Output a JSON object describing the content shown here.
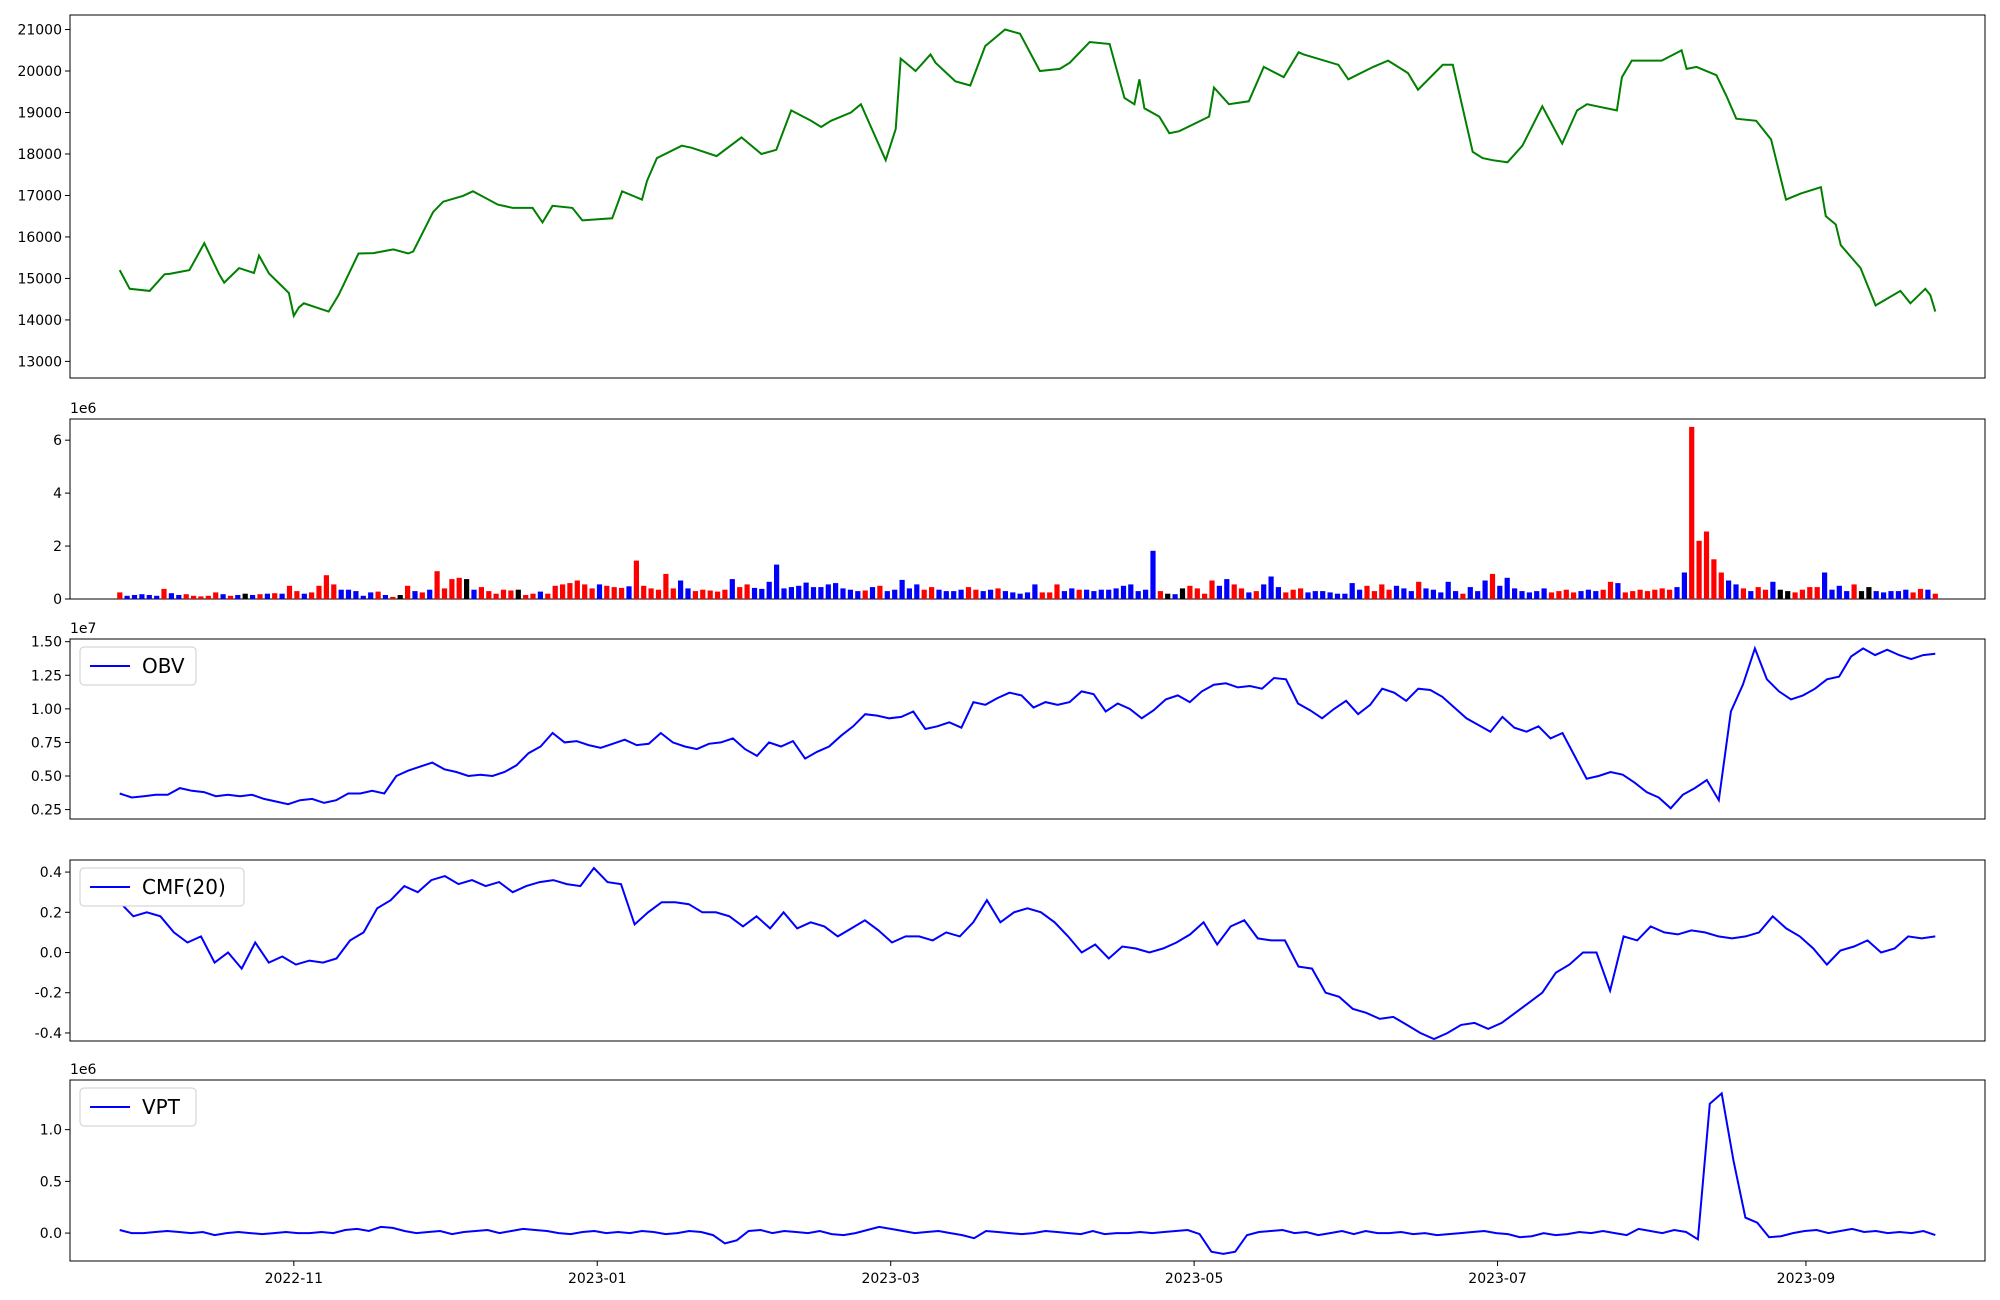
{
  "chart_data": [
    {
      "type": "line",
      "panel": "price",
      "color": "#008000",
      "ylim": [
        12600,
        21350
      ],
      "yticks": [
        13000,
        14000,
        15000,
        16000,
        17000,
        18000,
        19000,
        20000,
        21000
      ],
      "x": [
        "2022-09-27",
        "2022-09-29",
        "2022-10-03",
        "2022-10-06",
        "2022-10-07",
        "2022-10-11",
        "2022-10-14",
        "2022-10-17",
        "2022-10-18",
        "2022-10-21",
        "2022-10-24",
        "2022-10-25",
        "2022-10-27",
        "2022-10-31",
        "2022-11-01",
        "2022-11-02",
        "2022-11-03",
        "2022-11-08",
        "2022-11-10",
        "2022-11-14",
        "2022-11-17",
        "2022-11-21",
        "2022-11-24",
        "2022-11-25",
        "2022-11-29",
        "2022-12-01",
        "2022-12-05",
        "2022-12-07",
        "2022-12-12",
        "2022-12-15",
        "2022-12-19",
        "2022-12-21",
        "2022-12-23",
        "2022-12-27",
        "2022-12-29",
        "2023-01-04",
        "2023-01-06",
        "2023-01-10",
        "2023-01-11",
        "2023-01-13",
        "2023-01-18",
        "2023-01-20",
        "2023-01-25",
        "2023-01-30",
        "2023-02-03",
        "2023-02-06",
        "2023-02-09",
        "2023-02-13",
        "2023-02-15",
        "2023-02-17",
        "2023-02-21",
        "2023-02-23",
        "2023-02-28",
        "2023-03-02",
        "2023-03-03",
        "2023-03-06",
        "2023-03-09",
        "2023-03-10",
        "2023-03-14",
        "2023-03-17",
        "2023-03-20",
        "2023-03-24",
        "2023-03-27",
        "2023-03-31",
        "2023-04-04",
        "2023-04-06",
        "2023-04-10",
        "2023-04-14",
        "2023-04-17",
        "2023-04-19",
        "2023-04-20",
        "2023-04-21",
        "2023-04-24",
        "2023-04-26",
        "2023-04-28",
        "2023-05-04",
        "2023-05-05",
        "2023-05-08",
        "2023-05-12",
        "2023-05-15",
        "2023-05-19",
        "2023-05-22",
        "2023-05-23",
        "2023-05-30",
        "2023-06-01",
        "2023-06-06",
        "2023-06-09",
        "2023-06-13",
        "2023-06-15",
        "2023-06-20",
        "2023-06-22",
        "2023-06-26",
        "2023-06-28",
        "2023-06-30",
        "2023-07-03",
        "2023-07-06",
        "2023-07-10",
        "2023-07-14",
        "2023-07-17",
        "2023-07-19",
        "2023-07-21",
        "2023-07-25",
        "2023-07-26",
        "2023-07-28",
        "2023-08-03",
        "2023-08-07",
        "2023-08-08",
        "2023-08-10",
        "2023-08-14",
        "2023-08-16",
        "2023-08-18",
        "2023-08-22",
        "2023-08-25",
        "2023-08-28",
        "2023-08-31",
        "2023-09-04",
        "2023-09-05",
        "2023-09-07",
        "2023-09-08",
        "2023-09-12",
        "2023-09-14",
        "2023-09-15",
        "2023-09-20",
        "2023-09-22",
        "2023-09-25",
        "2023-09-26",
        "2023-09-27"
      ],
      "values": [
        15200,
        14750,
        14700,
        15100,
        15110,
        15200,
        15850,
        15100,
        14900,
        15250,
        15130,
        15550,
        15120,
        14650,
        14100,
        14300,
        14400,
        14200,
        14600,
        15600,
        15610,
        15700,
        15600,
        15650,
        16600,
        16850,
        16990,
        17100,
        16780,
        16700,
        16700,
        16350,
        16750,
        16700,
        16400,
        16450,
        17100,
        16900,
        17350,
        17900,
        18200,
        18150,
        17950,
        18400,
        18000,
        18100,
        19050,
        18800,
        18650,
        18800,
        19000,
        19200,
        17850,
        18600,
        20300,
        20000,
        20400,
        20200,
        19750,
        19650,
        20600,
        21000,
        20900,
        20000,
        20050,
        20200,
        20700,
        20650,
        19350,
        19200,
        19800,
        19100,
        18900,
        18500,
        18550,
        18900,
        19600,
        19200,
        19270,
        20100,
        19850,
        20450,
        20400,
        20150,
        19800,
        20100,
        20250,
        19950,
        19550,
        20150,
        20150,
        18050,
        17900,
        17850,
        17800,
        18200,
        19150,
        18250,
        19050,
        19200,
        19150,
        19050,
        19850,
        20250,
        20250,
        20500,
        20050,
        20100,
        19900,
        19400,
        18850,
        18800,
        18350,
        16900,
        17050,
        17200,
        16500,
        16300,
        15800,
        15250,
        14650,
        14350,
        14700,
        14400,
        14750,
        14600,
        14200
      ],
      "title": "",
      "xlabel": "",
      "ylabel": ""
    },
    {
      "type": "bar",
      "panel": "volume",
      "ylim": [
        0,
        6.8
      ],
      "yticks": [
        0,
        2,
        4,
        6
      ],
      "offset_label": "1e6",
      "unit_scale": 1000000,
      "colors": {
        "up": "#ff0000",
        "down": "#0000ff",
        "flat": "#000000"
      },
      "note_values": "values in units of 1e6; color_codes: r=up, b=down, k=flat",
      "values": [
        0.25,
        0.12,
        0.15,
        0.18,
        0.15,
        0.12,
        0.38,
        0.22,
        0.15,
        0.18,
        0.12,
        0.1,
        0.12,
        0.25,
        0.18,
        0.12,
        0.15,
        0.2,
        0.15,
        0.18,
        0.2,
        0.22,
        0.2,
        0.5,
        0.3,
        0.2,
        0.25,
        0.5,
        0.9,
        0.55,
        0.35,
        0.35,
        0.3,
        0.12,
        0.25,
        0.28,
        0.15,
        0.08,
        0.15,
        0.5,
        0.3,
        0.25,
        0.35,
        1.05,
        0.4,
        0.75,
        0.8,
        0.75,
        0.35,
        0.45,
        0.3,
        0.2,
        0.35,
        0.32,
        0.35,
        0.15,
        0.2,
        0.28,
        0.2,
        0.5,
        0.55,
        0.6,
        0.7,
        0.55,
        0.4,
        0.55,
        0.5,
        0.45,
        0.42,
        0.48,
        1.45,
        0.5,
        0.4,
        0.35,
        0.95,
        0.4,
        0.7,
        0.4,
        0.3,
        0.35,
        0.32,
        0.28,
        0.35,
        0.75,
        0.45,
        0.55,
        0.42,
        0.38,
        0.65,
        1.3,
        0.4,
        0.45,
        0.5,
        0.62,
        0.45,
        0.45,
        0.55,
        0.6,
        0.4,
        0.35,
        0.3,
        0.32,
        0.45,
        0.5,
        0.3,
        0.35,
        0.72,
        0.4,
        0.55,
        0.35,
        0.45,
        0.35,
        0.3,
        0.3,
        0.35,
        0.45,
        0.35,
        0.3,
        0.35,
        0.4,
        0.3,
        0.25,
        0.2,
        0.25,
        0.55,
        0.25,
        0.25,
        0.55,
        0.3,
        0.4,
        0.35,
        0.35,
        0.3,
        0.35,
        0.35,
        0.4,
        0.5,
        0.55,
        0.3,
        0.35,
        1.82,
        0.3,
        0.2,
        0.18,
        0.4,
        0.5,
        0.4,
        0.2,
        0.7,
        0.5,
        0.75,
        0.55,
        0.4,
        0.25,
        0.3,
        0.55,
        0.85,
        0.45,
        0.25,
        0.35,
        0.4,
        0.25,
        0.3,
        0.3,
        0.25,
        0.2,
        0.2,
        0.6,
        0.35,
        0.5,
        0.3,
        0.55,
        0.35,
        0.5,
        0.4,
        0.3,
        0.65,
        0.4,
        0.35,
        0.25,
        0.65,
        0.3,
        0.2,
        0.45,
        0.3,
        0.7,
        0.95,
        0.5,
        0.8,
        0.4,
        0.3,
        0.25,
        0.3,
        0.4,
        0.25,
        0.3,
        0.35,
        0.25,
        0.3,
        0.35,
        0.3,
        0.35,
        0.65,
        0.6,
        0.25,
        0.3,
        0.35,
        0.3,
        0.35,
        0.4,
        0.35,
        0.45,
        1.0,
        6.5,
        2.2,
        2.55,
        1.5,
        1.0,
        0.7,
        0.55,
        0.4,
        0.3,
        0.45,
        0.35,
        0.65,
        0.35,
        0.3,
        0.25,
        0.35,
        0.45,
        0.45,
        1.0,
        0.35,
        0.5,
        0.3,
        0.55,
        0.3,
        0.45,
        0.3,
        0.25,
        0.3,
        0.3,
        0.35,
        0.25,
        0.38,
        0.35,
        0.2
      ],
      "color_codes": "rbbbbbrbbrrrrrbrbkbrbrbrrbrrrrbbbbbrbrkrbrbrrrrkbrrrrrkrrbrrrrrrrbrrrbrrrrrrbbrrrrrbrrbbbbbbbbbbbbbbbrbrbbbbbrrbbbbrrbbrbbbbbrrrbbrbbbbbbbbbbrkbkrrrrbbrrbrbbbrrrbbbbbbbbrrrrbbbrbbbbbrbbbrbbbbbbbrrrrbbbrrbrrrrrrrbbrrrrrbbrbrrbkkrrrrbbbbrkkbbbbbrrbrbbbkbbbbrbbr"
    },
    {
      "type": "line",
      "panel": "obv",
      "color": "#0000ff",
      "ylim": [
        0.18,
        1.52
      ],
      "yticks": [
        0.25,
        0.5,
        0.75,
        1.0,
        1.25,
        1.5
      ],
      "offset_label": "1e7",
      "unit_scale": 10000000,
      "series": [
        {
          "name": "OBV",
          "values": [
            0.37,
            0.34,
            0.35,
            0.36,
            0.36,
            0.41,
            0.39,
            0.38,
            0.35,
            0.36,
            0.35,
            0.36,
            0.33,
            0.31,
            0.29,
            0.32,
            0.33,
            0.3,
            0.32,
            0.37,
            0.37,
            0.39,
            0.37,
            0.5,
            0.54,
            0.57,
            0.6,
            0.55,
            0.53,
            0.5,
            0.51,
            0.5,
            0.53,
            0.58,
            0.67,
            0.72,
            0.82,
            0.75,
            0.76,
            0.73,
            0.71,
            0.74,
            0.77,
            0.73,
            0.74,
            0.82,
            0.75,
            0.72,
            0.7,
            0.74,
            0.75,
            0.78,
            0.7,
            0.65,
            0.75,
            0.72,
            0.76,
            0.63,
            0.68,
            0.72,
            0.8,
            0.87,
            0.96,
            0.95,
            0.93,
            0.94,
            0.98,
            0.85,
            0.87,
            0.9,
            0.86,
            1.05,
            1.03,
            1.08,
            1.12,
            1.1,
            1.01,
            1.05,
            1.03,
            1.05,
            1.13,
            1.11,
            0.98,
            1.04,
            1.0,
            0.93,
            0.99,
            1.07,
            1.1,
            1.05,
            1.13,
            1.18,
            1.19,
            1.16,
            1.17,
            1.15,
            1.23,
            1.22,
            1.04,
            0.99,
            0.93,
            1.0,
            1.06,
            0.96,
            1.03,
            1.15,
            1.12,
            1.06,
            1.15,
            1.14,
            1.09,
            1.01,
            0.93,
            0.88,
            0.83,
            0.94,
            0.86,
            0.83,
            0.87,
            0.78,
            0.82,
            0.65,
            0.48,
            0.5,
            0.53,
            0.51,
            0.45,
            0.38,
            0.34,
            0.26,
            0.36,
            0.41,
            0.47,
            0.32,
            0.98,
            1.18,
            1.45,
            1.22,
            1.13,
            1.07,
            1.1,
            1.15,
            1.22,
            1.24,
            1.39,
            1.45,
            1.4,
            1.44,
            1.4,
            1.37,
            1.4,
            1.41
          ]
        }
      ],
      "x_note": "values in units of 1e7",
      "legend_position": "upper-left"
    },
    {
      "type": "line",
      "panel": "cmf",
      "color": "#0000ff",
      "ylim": [
        -0.44,
        0.46
      ],
      "yticks": [
        -0.4,
        -0.2,
        0.0,
        0.2,
        0.4
      ],
      "series": [
        {
          "name": "CMF(20)",
          "values": [
            0.25,
            0.18,
            0.2,
            0.18,
            0.1,
            0.05,
            0.08,
            -0.05,
            0.0,
            -0.08,
            0.05,
            -0.05,
            -0.02,
            -0.06,
            -0.04,
            -0.05,
            -0.03,
            0.06,
            0.1,
            0.22,
            0.26,
            0.33,
            0.3,
            0.36,
            0.38,
            0.34,
            0.36,
            0.33,
            0.35,
            0.3,
            0.33,
            0.35,
            0.36,
            0.34,
            0.33,
            0.42,
            0.35,
            0.34,
            0.14,
            0.2,
            0.25,
            0.25,
            0.24,
            0.2,
            0.2,
            0.18,
            0.13,
            0.18,
            0.12,
            0.2,
            0.12,
            0.15,
            0.13,
            0.08,
            0.12,
            0.16,
            0.11,
            0.05,
            0.08,
            0.08,
            0.06,
            0.1,
            0.08,
            0.15,
            0.26,
            0.15,
            0.2,
            0.22,
            0.2,
            0.15,
            0.08,
            0.0,
            0.04,
            -0.03,
            0.03,
            0.02,
            0.0,
            0.02,
            0.05,
            0.09,
            0.15,
            0.04,
            0.13,
            0.16,
            0.07,
            0.06,
            0.06,
            -0.07,
            -0.08,
            -0.2,
            -0.22,
            -0.28,
            -0.3,
            -0.33,
            -0.32,
            -0.36,
            -0.4,
            -0.43,
            -0.4,
            -0.36,
            -0.35,
            -0.38,
            -0.35,
            -0.3,
            -0.25,
            -0.2,
            -0.1,
            -0.06,
            0.0,
            0.0,
            -0.19,
            0.08,
            0.06,
            0.13,
            0.1,
            0.09,
            0.11,
            0.1,
            0.08,
            0.07,
            0.08,
            0.1,
            0.18,
            0.12,
            0.08,
            0.02,
            -0.06,
            0.01,
            0.03,
            0.06,
            0.0,
            0.02,
            0.08,
            0.07,
            0.08
          ]
        }
      ],
      "legend_position": "upper-left"
    },
    {
      "type": "line",
      "panel": "vpt",
      "color": "#0000ff",
      "ylim": [
        -0.27,
        1.48
      ],
      "yticks": [
        0.0,
        0.5,
        1.0
      ],
      "offset_label": "1e6",
      "unit_scale": 1000000,
      "series": [
        {
          "name": "VPT",
          "values": [
            0.03,
            0.0,
            0.0,
            0.01,
            0.02,
            0.01,
            0.0,
            0.01,
            -0.02,
            0.0,
            0.01,
            0.0,
            -0.01,
            0.0,
            0.01,
            0.0,
            0.0,
            0.01,
            0.0,
            0.03,
            0.04,
            0.02,
            0.06,
            0.05,
            0.02,
            0.0,
            0.01,
            0.02,
            -0.01,
            0.01,
            0.02,
            0.03,
            0.0,
            0.02,
            0.04,
            0.03,
            0.02,
            0.0,
            -0.01,
            0.01,
            0.02,
            0.0,
            0.01,
            0.0,
            0.02,
            0.01,
            -0.01,
            0.0,
            0.02,
            0.01,
            -0.02,
            -0.1,
            -0.07,
            0.02,
            0.03,
            0.0,
            0.02,
            0.01,
            0.0,
            0.02,
            -0.01,
            -0.02,
            0.0,
            0.03,
            0.06,
            0.04,
            0.02,
            0.0,
            0.01,
            0.02,
            0.0,
            -0.02,
            -0.05,
            0.02,
            0.01,
            0.0,
            -0.01,
            0.0,
            0.02,
            0.01,
            0.0,
            -0.01,
            0.02,
            -0.01,
            0.0,
            0.0,
            0.01,
            0.0,
            0.01,
            0.02,
            0.03,
            -0.01,
            -0.18,
            -0.2,
            -0.18,
            -0.02,
            0.01,
            0.02,
            0.03,
            0.0,
            0.01,
            -0.02,
            0.0,
            0.02,
            -0.01,
            0.02,
            0.0,
            0.0,
            0.01,
            -0.01,
            0.0,
            -0.02,
            -0.01,
            0.0,
            0.01,
            0.02,
            0.0,
            -0.01,
            -0.04,
            -0.03,
            0.0,
            -0.02,
            -0.01,
            0.01,
            0.0,
            0.02,
            0.0,
            -0.02,
            0.04,
            0.02,
            0.0,
            0.03,
            0.01,
            -0.06,
            1.25,
            1.35,
            0.7,
            0.15,
            0.1,
            -0.04,
            -0.03,
            0.0,
            0.02,
            0.03,
            0.0,
            0.02,
            0.04,
            0.01,
            0.02,
            0.0,
            0.01,
            0.0,
            0.02,
            -0.02
          ]
        }
      ],
      "legend_position": "upper-left"
    }
  ],
  "x_axis": {
    "type": "date",
    "range": [
      "2022-09-17",
      "2023-10-07"
    ],
    "ticks": [
      "2022-11",
      "2023-01",
      "2023-03",
      "2023-05",
      "2023-07",
      "2023-09"
    ],
    "data_start": "2022-09-27",
    "data_end": "2023-09-27"
  }
}
